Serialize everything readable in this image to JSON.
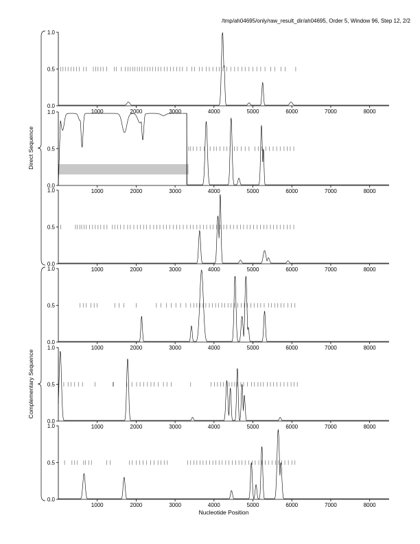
{
  "header": {
    "title": "/tmp/ah04695/only/raw_result_dir/ah04695, Order 5, Window 96, Step 12, 2/2"
  },
  "groups": [
    {
      "label": "Direct Sequence"
    },
    {
      "label": "Complementary Sequence"
    }
  ],
  "xlabel": "Nucleotide Position",
  "chart_data": {
    "type": "line",
    "xlim": [
      0,
      8500
    ],
    "ylim": [
      0,
      1
    ],
    "x_ticks": [
      1000,
      2000,
      3000,
      4000,
      5000,
      6000,
      7000,
      8000
    ],
    "y_ticks": [
      0.0,
      0.5,
      1.0
    ],
    "y_tick_labels": [
      "0.0",
      "0.5",
      "1.0"
    ],
    "xlabel": "Nucleotide Position",
    "panels": [
      {
        "group": "Direct Sequence",
        "peaks": [
          [
            1800,
            0.05,
            40
          ],
          [
            4220,
            1.0,
            28
          ],
          [
            4260,
            0.55,
            18
          ],
          [
            4900,
            0.04,
            30
          ],
          [
            5250,
            0.32,
            20
          ],
          [
            5980,
            0.05,
            40
          ]
        ],
        "ticks": [
          60,
          120,
          180,
          250,
          330,
          400,
          470,
          540,
          650,
          720,
          900,
          960,
          1020,
          1090,
          1150,
          1240,
          1440,
          1490,
          1620,
          1720,
          1790,
          1850,
          1910,
          1970,
          2030,
          2090,
          2150,
          2220,
          2290,
          2350,
          2420,
          2500,
          2570,
          2640,
          2720,
          2800,
          2880,
          2960,
          3040,
          3120,
          3190,
          3300,
          3430,
          3500,
          3620,
          3700,
          3800,
          3880,
          3970,
          4060,
          4140,
          4230,
          4330,
          4430,
          4530,
          4620,
          4720,
          4800,
          4900,
          5000,
          5100,
          5200,
          5310,
          5460,
          5560,
          5720,
          5830,
          6100
        ]
      },
      {
        "group": "Direct Sequence",
        "shade": {
          "x0": 0,
          "x1": 3350,
          "y0": 0.15,
          "y1": 0.29
        },
        "plateau": {
          "x0": 60,
          "x1": 3300,
          "y": 0.98
        },
        "dips": [
          [
            110,
            0.75,
            40
          ],
          [
            560,
            0.88,
            40
          ],
          [
            610,
            0.52,
            25
          ],
          [
            1700,
            0.72,
            60
          ],
          [
            1790,
            0.95,
            35
          ],
          [
            2170,
            0.62,
            25
          ],
          [
            2100,
            0.85,
            60
          ],
          [
            2700,
            0.95,
            60
          ]
        ],
        "peaks": [
          [
            3800,
            0.87,
            30
          ],
          [
            4440,
            0.92,
            25
          ],
          [
            4640,
            0.1,
            25
          ],
          [
            5220,
            0.82,
            22
          ],
          [
            5270,
            0.5,
            15
          ]
        ],
        "ticks": [
          3350,
          3400,
          3470,
          3560,
          3650,
          3750,
          3900,
          4000,
          4060,
          4150,
          4250,
          4330,
          4410,
          4520,
          4600,
          4700,
          4800,
          4900,
          5050,
          5140,
          5230,
          5330,
          5420,
          5520,
          5610,
          5700,
          5800,
          5880,
          5960,
          6050
        ]
      },
      {
        "group": "Direct Sequence",
        "peaks": [
          [
            3630,
            0.45,
            25
          ],
          [
            4100,
            0.65,
            25
          ],
          [
            4160,
            0.95,
            20
          ],
          [
            4680,
            0.05,
            30
          ],
          [
            5300,
            0.18,
            35
          ],
          [
            5400,
            0.08,
            30
          ],
          [
            5900,
            0.04,
            30
          ]
        ],
        "ticks": [
          60,
          440,
          490,
          550,
          600,
          660,
          720,
          800,
          880,
          950,
          1020,
          1090,
          1170,
          1250,
          1390,
          1450,
          1520,
          1600,
          1690,
          1780,
          1850,
          1940,
          2030,
          2110,
          2190,
          2270,
          2360,
          2450,
          2530,
          2610,
          2700,
          2780,
          2860,
          2950,
          3040,
          3120,
          3210,
          3300,
          3390,
          3470,
          3560,
          3640,
          3730,
          3810,
          3900,
          3980,
          4070,
          4160,
          4250,
          4330,
          4420,
          4500,
          4590,
          4680,
          4760,
          4850,
          4930,
          5020,
          5110,
          5190,
          5280,
          5360,
          5450,
          5530,
          5620,
          5700,
          5790,
          5880,
          5960,
          6050
        ]
      },
      {
        "group": "Complementary Sequence",
        "peaks": [
          [
            2140,
            0.35,
            20
          ],
          [
            3420,
            0.22,
            20
          ],
          [
            3680,
            0.98,
            45
          ],
          [
            4540,
            0.9,
            25
          ],
          [
            4720,
            0.35,
            25
          ],
          [
            4820,
            0.9,
            25
          ],
          [
            4880,
            0.2,
            20
          ],
          [
            5300,
            0.42,
            22
          ]
        ],
        "ticks": [
          560,
          640,
          720,
          840,
          920,
          1000,
          1450,
          1560,
          1680,
          2000,
          2520,
          2640,
          2780,
          2900,
          3020,
          3140,
          3280,
          3400,
          3480,
          3560,
          3640,
          3720,
          3790,
          3880,
          3960,
          4040,
          4120,
          4200,
          4280,
          4360,
          4440,
          4530,
          4610,
          4700,
          4780,
          4860,
          4950,
          5030,
          5120,
          5200,
          5290,
          5400,
          5480,
          5560,
          5640,
          5720,
          5800,
          5900,
          5990,
          6080
        ]
      },
      {
        "group": "Complementary Sequence",
        "peaks": [
          [
            50,
            0.95,
            30
          ],
          [
            1780,
            0.85,
            25
          ],
          [
            3450,
            0.05,
            25
          ],
          [
            4330,
            0.55,
            25
          ],
          [
            4420,
            0.45,
            20
          ],
          [
            4600,
            0.72,
            20
          ],
          [
            4720,
            0.5,
            20
          ],
          [
            4780,
            0.35,
            20
          ],
          [
            5700,
            0.05,
            25
          ]
        ],
        "ticks": [
          140,
          250,
          330,
          420,
          520,
          620,
          940,
          1400,
          1420,
          1760,
          1890,
          2010,
          2100,
          2190,
          2290,
          2380,
          2460,
          2570,
          2700,
          2790,
          2900,
          3400,
          3920,
          4010,
          4090,
          4170,
          4240,
          4320,
          4390,
          4460,
          4530,
          4600,
          4690,
          4760,
          4860,
          4960,
          5040,
          5130,
          5200,
          5270,
          5370,
          5450,
          5530,
          5620,
          5710,
          5800,
          5890,
          5980,
          6060,
          6140
        ]
      },
      {
        "group": "Complementary Sequence",
        "peaks": [
          [
            660,
            0.35,
            30
          ],
          [
            1690,
            0.3,
            25
          ],
          [
            4450,
            0.12,
            25
          ],
          [
            4960,
            0.5,
            22
          ],
          [
            5080,
            0.2,
            22
          ],
          [
            5230,
            0.72,
            22
          ],
          [
            5650,
            0.95,
            30
          ],
          [
            5720,
            0.5,
            25
          ]
        ],
        "ticks": [
          160,
          350,
          420,
          490,
          650,
          700,
          780,
          850,
          1240,
          1330,
          1830,
          1900,
          2000,
          2090,
          2180,
          2270,
          2370,
          2460,
          2560,
          2640,
          2720,
          2800,
          3320,
          3400,
          3480,
          3560,
          3640,
          3720,
          3800,
          3890,
          3970,
          4050,
          4130,
          4210,
          4300,
          4380,
          4470,
          4560,
          4640,
          4720,
          4800,
          4890,
          4980,
          5060,
          5150,
          5230,
          5320,
          5400,
          5490,
          5580,
          5660,
          5740,
          5820,
          5910,
          6000,
          6080
        ]
      }
    ]
  }
}
